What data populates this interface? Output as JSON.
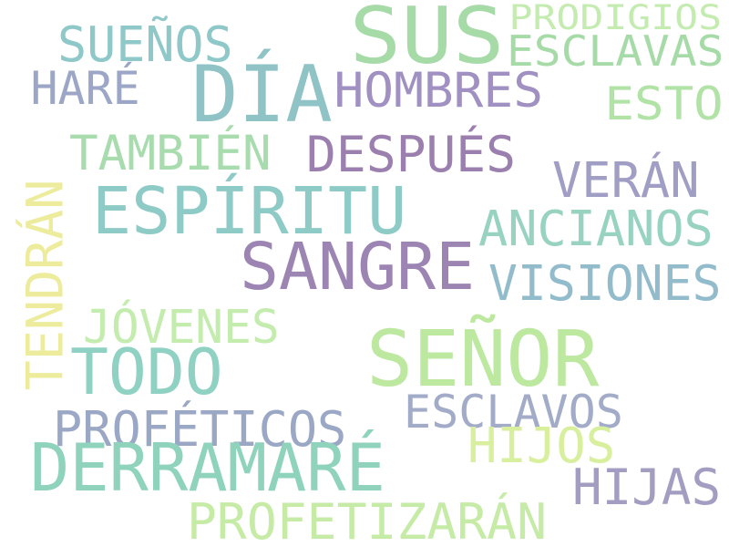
{
  "words": [
    {
      "text": "SUS",
      "color": "#a6dba8",
      "orientation": "horizontal"
    },
    {
      "text": "PRODIGIOS",
      "color": "#c4ecb0",
      "orientation": "horizontal"
    },
    {
      "text": "SUEÑOS",
      "color": "#8fc8c8",
      "orientation": "horizontal"
    },
    {
      "text": "ESCLAVAS",
      "color": "#a6dba8",
      "orientation": "horizontal"
    },
    {
      "text": "DÍA",
      "color": "#8fc3c5",
      "orientation": "horizontal"
    },
    {
      "text": "HARÉ",
      "color": "#9ca7c7",
      "orientation": "horizontal"
    },
    {
      "text": "HOMBRES",
      "color": "#a091c2",
      "orientation": "horizontal"
    },
    {
      "text": "ESTO",
      "color": "#b0e3a5",
      "orientation": "horizontal"
    },
    {
      "text": "TAMBIÉN",
      "color": "#a8dcae",
      "orientation": "horizontal"
    },
    {
      "text": "DESPUÉS",
      "color": "#9b7fae",
      "orientation": "horizontal"
    },
    {
      "text": "VERÁN",
      "color": "#a09ec4",
      "orientation": "horizontal"
    },
    {
      "text": "ESPÍRITU",
      "color": "#8ecac6",
      "orientation": "horizontal"
    },
    {
      "text": "ANCIANOS",
      "color": "#98d2c0",
      "orientation": "horizontal"
    },
    {
      "text": "TENDRÁN",
      "color": "#ecec9c",
      "orientation": "vertical"
    },
    {
      "text": "SANGRE",
      "color": "#9c84b3",
      "orientation": "horizontal"
    },
    {
      "text": "VISIONES",
      "color": "#92bccb",
      "orientation": "horizontal"
    },
    {
      "text": "JÓVENES",
      "color": "#c4ecaf",
      "orientation": "horizontal"
    },
    {
      "text": "TODO",
      "color": "#8fd1c2",
      "orientation": "horizontal"
    },
    {
      "text": "SEÑOR",
      "color": "#bde8a0",
      "orientation": "horizontal"
    },
    {
      "text": "ESCLAVOS",
      "color": "#a2acc9",
      "orientation": "horizontal"
    },
    {
      "text": "PROFÉTICOS",
      "color": "#9aa8c6",
      "orientation": "horizontal"
    },
    {
      "text": "HIJOS",
      "color": "#d8ef9e",
      "orientation": "horizontal"
    },
    {
      "text": "DERRAMARÉ",
      "color": "#8fd3bd",
      "orientation": "horizontal"
    },
    {
      "text": "HIJAS",
      "color": "#a39ec1",
      "orientation": "horizontal"
    },
    {
      "text": "PROFETIZARÁN",
      "color": "#c6eba6",
      "orientation": "horizontal"
    }
  ]
}
